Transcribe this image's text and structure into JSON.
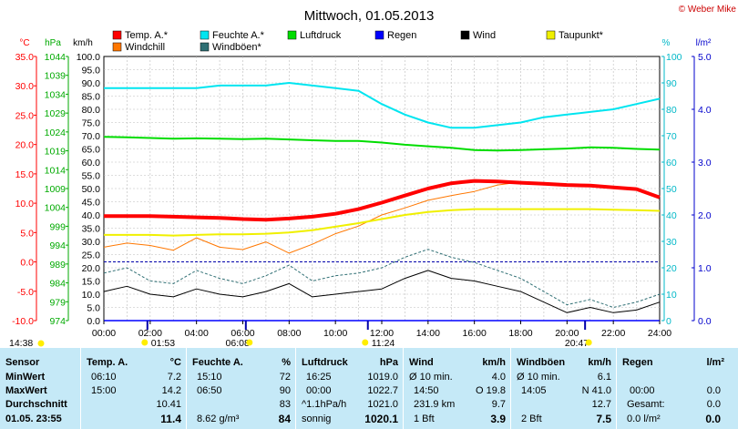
{
  "title": "Mittwoch, 01.05.2013",
  "copyright": "© Weber Mike",
  "colors": {
    "temp": "#ff0000",
    "humidity": "#00e5f0",
    "pressure": "#00dd00",
    "rain": "#0000ff",
    "wind": "#000000",
    "dewpoint": "#f0f000",
    "windchill": "#ff7700",
    "gust": "#2f6f74",
    "table_bg": "#c5e9f7",
    "grid": "#999999"
  },
  "legend": [
    {
      "label": "Temp. A.*",
      "color": "#ff0000"
    },
    {
      "label": "Feuchte A.*",
      "color": "#00e5f0"
    },
    {
      "label": "Luftdruck",
      "color": "#00dd00"
    },
    {
      "label": "Regen",
      "color": "#0000ff"
    },
    {
      "label": "Wind",
      "color": "#000000"
    },
    {
      "label": "Taupunkt*",
      "color": "#f0f000"
    },
    {
      "label": "Windchill",
      "color": "#ff7700"
    },
    {
      "label": "Windböen*",
      "color": "#2f6f74"
    }
  ],
  "axes": {
    "temp_unit": "°C",
    "pressure_unit": "hPa",
    "wind_unit": "km/h",
    "humidity_unit": "%",
    "rain_unit": "l/m²",
    "temp_ticks": [
      "35.0",
      "30.0",
      "25.0",
      "20.0",
      "15.0",
      "10.0",
      "5.0",
      "0.0",
      "-5.0",
      "-10.0"
    ],
    "pressure_ticks": [
      "1044",
      "1039",
      "1034",
      "1029",
      "1024",
      "1019",
      "1014",
      "1009",
      "1004",
      "999",
      "994",
      "989",
      "984",
      "979",
      "974"
    ],
    "wind_ticks": [
      "100.0",
      "95.0",
      "90.0",
      "85.0",
      "80.0",
      "75.0",
      "70.0",
      "65.0",
      "60.0",
      "55.0",
      "50.0",
      "45.0",
      "40.0",
      "35.0",
      "30.0",
      "25.0",
      "20.0",
      "15.0",
      "10.0",
      "5.0",
      "0.0"
    ],
    "humidity_ticks": [
      "100",
      "90",
      "80",
      "70",
      "60",
      "50",
      "40",
      "30",
      "20",
      "10",
      "0"
    ],
    "rain_ticks": [
      "5.0",
      "4.0",
      "3.0",
      "2.0",
      "1.0",
      "0.0"
    ],
    "x_ticks": [
      "00:00",
      "02:00",
      "04:00",
      "06:00",
      "08:00",
      "10:00",
      "12:00",
      "14:00",
      "16:00",
      "18:00",
      "20:00",
      "22:00",
      "24:00"
    ]
  },
  "sun_markers": [
    {
      "label": "14:38",
      "hour": null
    },
    {
      "label": "01:53",
      "hour": 1.88
    },
    {
      "label": "06:08",
      "hour": 6.13
    },
    {
      "label": "11:24",
      "hour": 11.4
    },
    {
      "label": "20:47",
      "hour": 20.78
    }
  ],
  "chart_data": {
    "type": "line",
    "title": "Mittwoch, 01.05.2013",
    "x_range": [
      "00:00",
      "24:00"
    ],
    "ylim_temp": [
      -10,
      35
    ],
    "ylim_pressure": [
      974,
      1044
    ],
    "ylim_wind": [
      0,
      100
    ],
    "ylim_humidity": [
      0,
      100
    ],
    "ylim_rain": [
      0,
      5
    ],
    "x_hours": [
      0,
      1,
      2,
      3,
      4,
      5,
      6,
      7,
      8,
      9,
      10,
      11,
      12,
      13,
      14,
      15,
      16,
      17,
      18,
      19,
      20,
      21,
      22,
      23,
      24
    ],
    "series": [
      {
        "name": "Temp. A.*",
        "axis": "temp",
        "color": "#ff0000",
        "values": [
          7.8,
          7.8,
          7.8,
          7.7,
          7.6,
          7.5,
          7.3,
          7.2,
          7.4,
          7.7,
          8.2,
          9.0,
          10.1,
          11.3,
          12.5,
          13.4,
          13.8,
          13.7,
          13.5,
          13.3,
          13.1,
          13.0,
          12.7,
          12.4,
          11.0
        ]
      },
      {
        "name": "Feuchte A.*",
        "axis": "humidity",
        "color": "#00e5f0",
        "values": [
          88,
          88,
          88,
          88,
          88,
          89,
          89,
          89,
          90,
          89,
          88,
          87,
          82,
          78,
          75,
          73,
          73,
          74,
          75,
          77,
          78,
          79,
          80,
          82,
          84
        ]
      },
      {
        "name": "Luftdruck",
        "axis": "pressure",
        "color": "#00dd00",
        "values": [
          1022.7,
          1022.6,
          1022.4,
          1022.2,
          1022.3,
          1022.2,
          1022.1,
          1022.2,
          1022.0,
          1021.8,
          1021.6,
          1021.6,
          1021.2,
          1020.6,
          1020.2,
          1019.8,
          1019.2,
          1019.1,
          1019.2,
          1019.4,
          1019.6,
          1019.9,
          1019.8,
          1019.5,
          1019.3
        ]
      },
      {
        "name": "Regen",
        "axis": "rain",
        "color": "#0000ff",
        "values": [
          0,
          0,
          0,
          0,
          0,
          0,
          0,
          0,
          0,
          0,
          0,
          0,
          0,
          0,
          0,
          0,
          0,
          0,
          0,
          0,
          0,
          0,
          0,
          0,
          0
        ]
      },
      {
        "name": "Wind",
        "axis": "wind",
        "color": "#000000",
        "values": [
          11,
          13,
          10,
          9,
          12,
          10,
          9,
          11,
          14,
          9,
          10,
          11,
          12,
          16,
          19,
          16,
          15,
          13,
          11,
          7,
          3,
          5,
          3,
          4,
          7
        ]
      },
      {
        "name": "Taupunkt*",
        "axis": "temp",
        "color": "#f0f000",
        "values": [
          4.6,
          4.6,
          4.6,
          4.5,
          4.6,
          4.7,
          4.7,
          4.8,
          5.0,
          5.4,
          6.0,
          6.6,
          7.3,
          8.0,
          8.5,
          8.8,
          9.0,
          9.0,
          9.0,
          9.0,
          9.0,
          9.0,
          8.9,
          8.8,
          8.7
        ]
      },
      {
        "name": "Windchill",
        "axis": "temp",
        "color": "#ff7700",
        "values": [
          2.5,
          3.2,
          2.8,
          2.0,
          4.1,
          2.5,
          2.1,
          3.4,
          1.5,
          3.0,
          4.8,
          6.1,
          8.0,
          9.2,
          10.5,
          11.3,
          12.0,
          13.1,
          13.6,
          null,
          null,
          null,
          null,
          null,
          null
        ]
      },
      {
        "name": "Windböen*",
        "axis": "wind",
        "color": "#2f6f74",
        "values": [
          18,
          20,
          15,
          14,
          19,
          16,
          14,
          17,
          21,
          15,
          17,
          18,
          20,
          24,
          27,
          24,
          22,
          19,
          16,
          11,
          6,
          8,
          5,
          7,
          10
        ]
      }
    ]
  },
  "table": {
    "header": {
      "sensor": "Sensor",
      "temp": "Temp. A.",
      "temp_unit": "°C",
      "hum": "Feuchte A.",
      "hum_unit": "%",
      "press": "Luftdruck",
      "press_unit": "hPa",
      "wind": "Wind",
      "wind_unit": "km/h",
      "gust": "Windböen",
      "gust_unit": "km/h",
      "rain": "Regen",
      "rain_unit": "l/m²"
    },
    "rows": [
      {
        "label": "MinWert",
        "temp_t": "06:10",
        "temp_v": "7.2",
        "hum_t": "15:10",
        "hum_v": "72",
        "press_t": "16:25",
        "press_v": "1019.0",
        "wind_t": "Ø 10 min.",
        "wind_v": "4.0",
        "gust_t": "Ø 10 min.",
        "gust_v": "6.1",
        "rain_t": "",
        "rain_v": ""
      },
      {
        "label": "MaxWert",
        "temp_t": "15:00",
        "temp_v": "14.2",
        "hum_t": "06:50",
        "hum_v": "90",
        "press_t": "00:00",
        "press_v": "1022.7",
        "wind_t": "14:50",
        "wind_m": "O 19.8",
        "wind_v": "",
        "gust_t": "14:05",
        "gust_m": "N 41.0",
        "gust_v": "",
        "rain_t": "00:00",
        "rain_v": "0.0"
      },
      {
        "label": "Durchschnitt",
        "temp_t": "",
        "temp_v": "10.41",
        "hum_t": "",
        "hum_v": "83",
        "press_t": "^1.1hPa/h",
        "press_v": "1021.0",
        "wind_t": "231.9 km",
        "wind_v": "9.7",
        "gust_t": "",
        "gust_v": "12.7",
        "rain_t": "Gesamt:",
        "rain_v": "0.0"
      },
      {
        "label": "01.05. 23:55",
        "temp_t": "",
        "temp_v": "11.4",
        "hum_t": "8.62 g/m³",
        "hum_v": "84",
        "press_t": "sonnig",
        "press_v": "1020.1",
        "wind_t": "1 Bft",
        "wind_v": "3.9",
        "gust_t": "2 Bft",
        "gust_v": "7.5",
        "rain_t": "0.0 l/m²",
        "rain_v": "0.0"
      }
    ]
  }
}
